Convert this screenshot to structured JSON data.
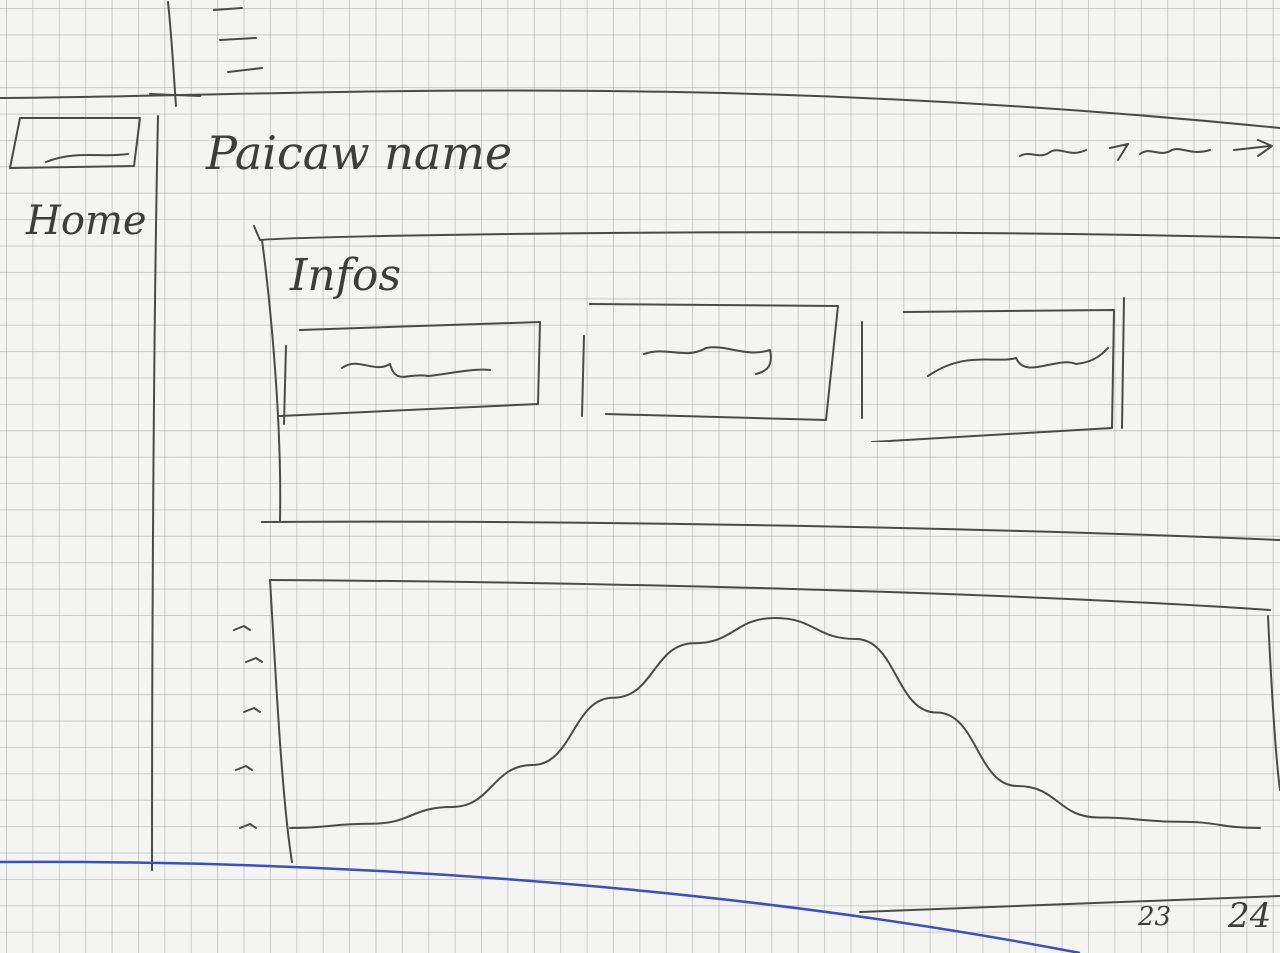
{
  "sidebar": {
    "items": [
      {
        "label": "Home",
        "icon": "logo-box-icon"
      }
    ]
  },
  "header": {
    "title": "Paicaw name"
  },
  "infos": {
    "heading": "Infos",
    "cards": [
      {
        "icon": "squiggle-placeholder"
      },
      {
        "icon": "squiggle-placeholder"
      },
      {
        "icon": "squiggle-placeholder"
      }
    ]
  },
  "chart_data": {
    "type": "area",
    "x": [
      0,
      1,
      2,
      3,
      4,
      5,
      6,
      7,
      8,
      9,
      10,
      11,
      12
    ],
    "values": [
      0,
      0.02,
      0.1,
      0.3,
      0.62,
      0.88,
      1.0,
      0.9,
      0.55,
      0.2,
      0.05,
      0.03,
      0
    ],
    "tick_labels": [
      "23",
      "24"
    ],
    "grid": false,
    "legend": "none"
  }
}
